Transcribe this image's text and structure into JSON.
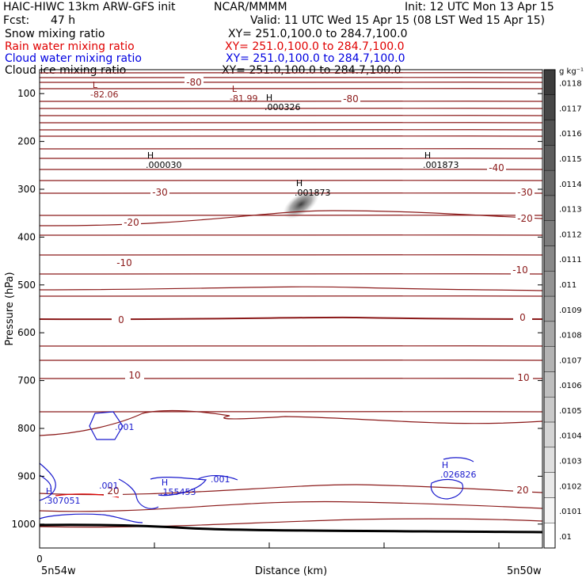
{
  "header": {
    "model_title": "HAIC-HIWC 13km ARW-GFS init",
    "institution": "NCAR/MMMM",
    "init_time": "Init: 12 UTC Mon 13 Apr 15",
    "fcst_label": "Fcst:",
    "fcst_value": "47 h",
    "valid_time": "Valid: 11 UTC Wed 15 Apr 15 (08 LST Wed 15 Apr 15)",
    "fields": [
      {
        "name": "Snow mixing ratio",
        "xy": "XY= 251.0,100.0 to 284.7,100.0",
        "color": "#000000"
      },
      {
        "name": "Rain water mixing ratio",
        "xy": "XY= 251.0,100.0 to 284.7,100.0",
        "color": "#e00000"
      },
      {
        "name": "Cloud water mixing ratio",
        "xy": "XY= 251.0,100.0 to 284.7,100.0",
        "color": "#0000e0"
      },
      {
        "name": "Cloud ice mixing ratio",
        "xy": "XY= 251.0,100.0 to 284.7,100.0",
        "color": "#000000"
      }
    ]
  },
  "chart_data": {
    "type": "heatmap",
    "xlabel": "Distance (km)",
    "ylabel": "Pressure (hPa)",
    "x_ticks": [
      "0"
    ],
    "x_endpoints": [
      "5n54w",
      "5n50w"
    ],
    "y_ticks": [
      100,
      200,
      300,
      400,
      500,
      600,
      700,
      800,
      900,
      1000
    ],
    "ylim": [
      1050,
      50
    ],
    "y_scale": "linear",
    "colorbar": {
      "units": "g kg⁻¹",
      "levels": [
        ".0118",
        ".0117",
        ".0116",
        ".0115",
        ".0114",
        ".0113",
        ".0112",
        ".0111",
        ".011",
        ".0109",
        ".0108",
        ".0107",
        ".0106",
        ".0105",
        ".0104",
        ".0103",
        ".0102",
        ".0101",
        ".01"
      ]
    },
    "temperature_labels": [
      "-80",
      "-80",
      "-40",
      "-30",
      "-30",
      "-20",
      "-20",
      "-10",
      "-10",
      "0",
      "0",
      "10",
      "10",
      "20",
      "20"
    ],
    "extrema": [
      {
        "type": "L",
        "value": "-82.06"
      },
      {
        "type": "L",
        "value": "-81.99"
      },
      {
        "type": "H",
        "value": ".000326"
      },
      {
        "type": "H",
        "value": ".000030"
      },
      {
        "type": "H",
        "value": ".001873"
      },
      {
        "type": "H",
        "value": ".001873"
      },
      {
        "type": "H",
        "value": ".026826"
      },
      {
        "type": "H",
        "value": ".307051"
      },
      {
        "type": "H",
        "value": ".155453"
      }
    ],
    "cloud_water_labels": [
      ".001",
      ".001",
      ".001"
    ],
    "colors": {
      "temperature": "#8b1a1a",
      "cloud_water": "#1a1acd",
      "rain": "#e00000",
      "ground": "#000000"
    }
  }
}
